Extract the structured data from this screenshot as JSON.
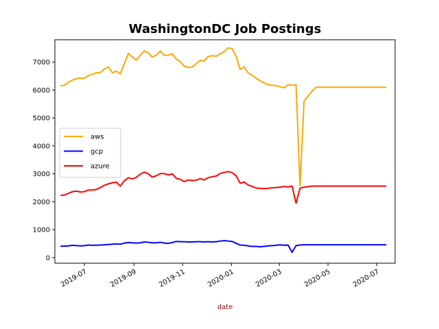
{
  "chart_data": {
    "type": "line",
    "title": "WashingtonDC Job Postings",
    "xlabel": "date",
    "ylabel": "",
    "xlabel_color": "#8b0000",
    "x_tick_labels": [
      "2019-07",
      "2019-09",
      "2019-11",
      "2020-01",
      "2020-03",
      "2020-05",
      "2020-07"
    ],
    "y_ticks": [
      0,
      1000,
      2000,
      3000,
      4000,
      5000,
      6000,
      7000
    ],
    "xlim": [
      "2019-05-25",
      "2020-07-24"
    ],
    "ylim": [
      -200,
      7800
    ],
    "grid": false,
    "legend_position": "center-left",
    "x": [
      "2019-06-01",
      "2019-06-06",
      "2019-06-11",
      "2019-06-16",
      "2019-06-21",
      "2019-06-26",
      "2019-07-01",
      "2019-07-06",
      "2019-07-11",
      "2019-07-16",
      "2019-07-21",
      "2019-07-26",
      "2019-07-31",
      "2019-08-05",
      "2019-08-10",
      "2019-08-15",
      "2019-08-20",
      "2019-08-25",
      "2019-08-30",
      "2019-09-04",
      "2019-09-09",
      "2019-09-14",
      "2019-09-19",
      "2019-09-24",
      "2019-09-29",
      "2019-10-04",
      "2019-10-09",
      "2019-10-14",
      "2019-10-19",
      "2019-10-24",
      "2019-10-29",
      "2019-11-03",
      "2019-11-08",
      "2019-11-13",
      "2019-11-18",
      "2019-11-23",
      "2019-11-28",
      "2019-12-03",
      "2019-12-08",
      "2019-12-13",
      "2019-12-18",
      "2019-12-23",
      "2019-12-28",
      "2020-01-02",
      "2020-01-07",
      "2020-01-12",
      "2020-01-17",
      "2020-01-22",
      "2020-01-27",
      "2020-02-01",
      "2020-02-06",
      "2020-02-11",
      "2020-02-16",
      "2020-02-21",
      "2020-02-26",
      "2020-03-02",
      "2020-03-07",
      "2020-03-12",
      "2020-03-17",
      "2020-03-22",
      "2020-03-27",
      "2020-04-01",
      "2020-04-06",
      "2020-04-11",
      "2020-04-16",
      "2020-04-21",
      "2020-04-26",
      "2020-05-01",
      "2020-05-06",
      "2020-05-11",
      "2020-05-16",
      "2020-05-21",
      "2020-05-26",
      "2020-05-31",
      "2020-06-05",
      "2020-06-08",
      "2020-06-11",
      "2020-06-15",
      "2020-06-20",
      "2020-06-24",
      "2020-06-28",
      "2020-07-03",
      "2020-07-08",
      "2020-07-13"
    ],
    "series": [
      {
        "name": "aws",
        "color": "#ffa500",
        "values": [
          6150,
          6170,
          6280,
          6350,
          6410,
          6430,
          6420,
          6520,
          6560,
          6620,
          6630,
          6750,
          6830,
          6620,
          6680,
          6580,
          6940,
          7310,
          7180,
          7070,
          7250,
          7400,
          7330,
          7180,
          7250,
          7400,
          7240,
          7250,
          7300,
          7110,
          7020,
          6850,
          6810,
          6820,
          6940,
          7060,
          7040,
          7200,
          7230,
          7210,
          7300,
          7370,
          7510,
          7480,
          7200,
          6740,
          6830,
          6610,
          6530,
          6420,
          6330,
          6260,
          6190,
          6170,
          6160,
          6120,
          6080,
          6190,
          6170,
          6180,
          2580,
          5600,
          5780,
          5960,
          6100,
          6100,
          6100,
          6100,
          6100,
          6100,
          6100,
          6100,
          6100,
          6100,
          6100,
          6100,
          6100,
          6100,
          6100,
          6100,
          6100,
          6100,
          6100,
          6100
        ]
      },
      {
        "name": "gcp",
        "color": "#0000ff",
        "values": [
          410,
          410,
          420,
          440,
          430,
          420,
          430,
          450,
          440,
          445,
          450,
          460,
          470,
          480,
          490,
          480,
          520,
          540,
          530,
          520,
          530,
          560,
          550,
          530,
          530,
          550,
          520,
          510,
          540,
          580,
          570,
          570,
          560,
          560,
          570,
          570,
          560,
          570,
          560,
          570,
          590,
          610,
          590,
          580,
          510,
          450,
          440,
          420,
          400,
          400,
          390,
          400,
          420,
          430,
          440,
          460,
          440,
          450,
          190,
          430,
          450,
          460,
          460,
          460,
          460,
          460,
          460,
          460,
          460,
          460,
          460,
          460,
          460,
          460,
          460,
          460,
          460,
          460,
          460,
          460,
          460,
          460,
          460,
          460
        ]
      },
      {
        "name": "azure",
        "color": "#ff0000",
        "values": [
          2230,
          2240,
          2300,
          2360,
          2380,
          2350,
          2360,
          2420,
          2420,
          2440,
          2510,
          2590,
          2640,
          2680,
          2700,
          2560,
          2750,
          2860,
          2820,
          2870,
          2990,
          3060,
          3000,
          2880,
          2930,
          3010,
          3010,
          2960,
          3000,
          2840,
          2800,
          2720,
          2780,
          2760,
          2770,
          2830,
          2780,
          2860,
          2900,
          2920,
          3010,
          3050,
          3080,
          3040,
          2930,
          2660,
          2710,
          2600,
          2550,
          2490,
          2480,
          2470,
          2480,
          2500,
          2510,
          2520,
          2550,
          2530,
          2560,
          1950,
          2490,
          2520,
          2540,
          2560,
          2560,
          2560,
          2560,
          2560,
          2560,
          2560,
          2560,
          2560,
          2560,
          2560,
          2560,
          2560,
          2560,
          2560,
          2560,
          2560,
          2560,
          2560,
          2560,
          2560
        ]
      }
    ]
  }
}
